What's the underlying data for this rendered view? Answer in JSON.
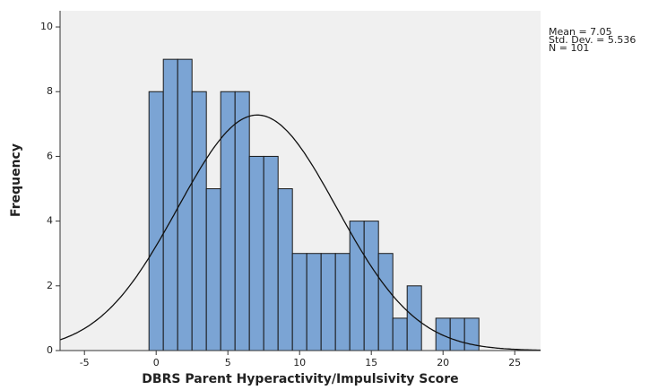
{
  "chart_data": {
    "type": "histogram",
    "x_label": "DBRS Parent Hyperactivity/Impulsivity Score",
    "y_label": "Frequency",
    "bins": [
      -0.5,
      0.5,
      1.5,
      2.5,
      3.5,
      4.5,
      5.5,
      6.5,
      7.5,
      8.5,
      9.5,
      10.5,
      11.5,
      12.5,
      13.5,
      14.5,
      15.5,
      16.5,
      17.5,
      18.5,
      19.5,
      20.5,
      21.5,
      22.5
    ],
    "values": [
      8,
      9,
      9,
      8,
      5,
      8,
      8,
      6,
      6,
      5,
      3,
      3,
      3,
      3,
      4,
      4,
      3,
      1,
      2,
      0,
      1,
      1,
      1
    ],
    "color": "#7ba4d4",
    "xlim": [
      -6.7,
      26.8
    ],
    "xticks": [
      -5,
      0,
      5,
      10,
      15,
      20,
      25
    ],
    "ylim": [
      0,
      10.5
    ],
    "yticks": [
      0,
      2,
      4,
      6,
      8,
      10
    ],
    "normal_curve": {
      "mean": 7.05,
      "std_dev": 5.536,
      "n": 101
    },
    "stats_labels": [
      "Mean = 7.05",
      "Std. Dev. = 5.536",
      "N = 101"
    ]
  }
}
